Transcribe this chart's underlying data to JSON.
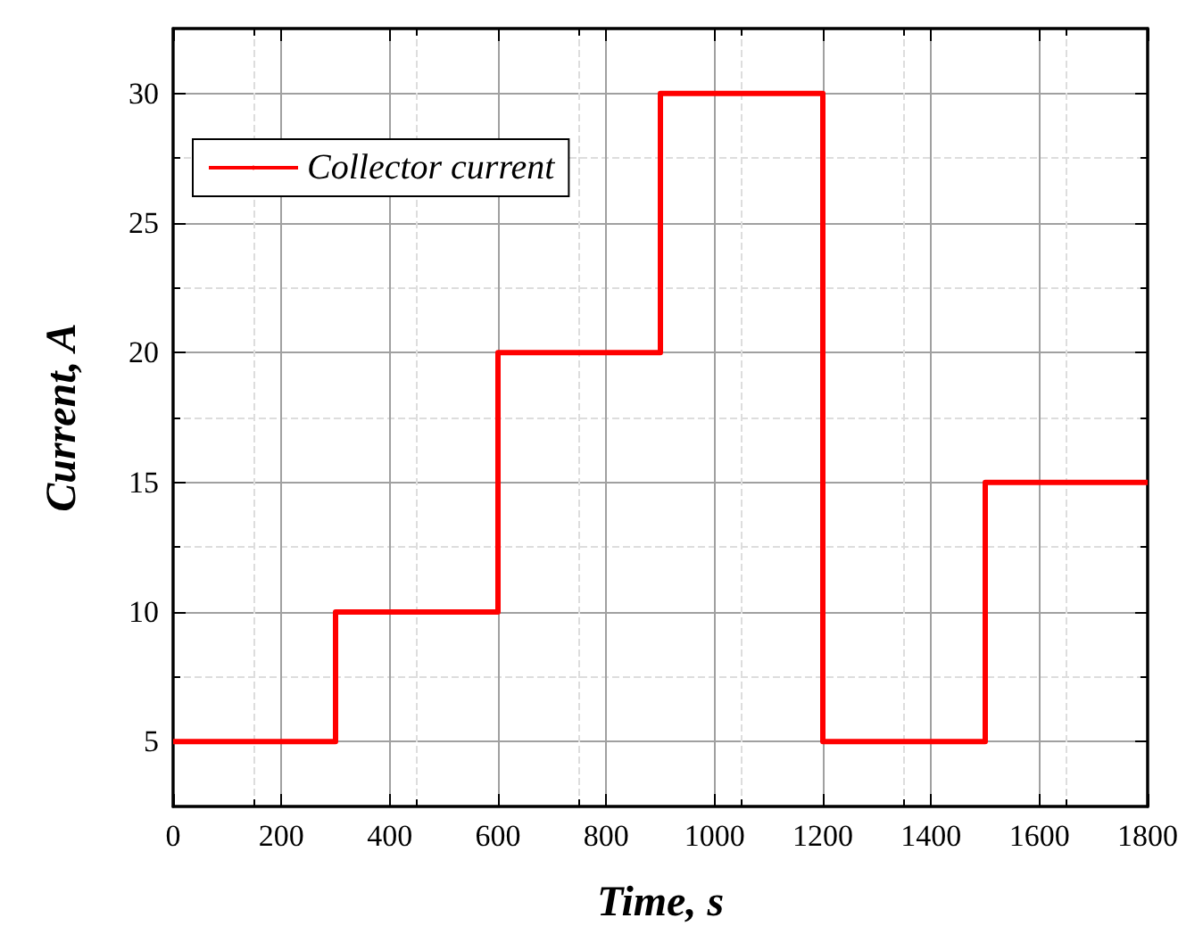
{
  "chart_data": {
    "type": "step",
    "xlabel": "Time, s",
    "ylabel": "Current, A",
    "x": [
      0,
      300,
      600,
      900,
      1200,
      1500,
      1800
    ],
    "series": [
      {
        "name": "Collector current",
        "color": "#ff0000",
        "values": [
          5,
          10,
          20,
          30,
          5,
          15,
          15
        ]
      }
    ],
    "xlim": [
      0,
      1800
    ],
    "xticks": [
      0,
      200,
      400,
      600,
      800,
      1000,
      1200,
      1400,
      1600,
      1800
    ],
    "ylim": [
      2.5,
      32.5
    ],
    "yticks": [
      5,
      10,
      15,
      20,
      25,
      30
    ],
    "grid": true,
    "legend": "top left",
    "line_style": "solid"
  }
}
